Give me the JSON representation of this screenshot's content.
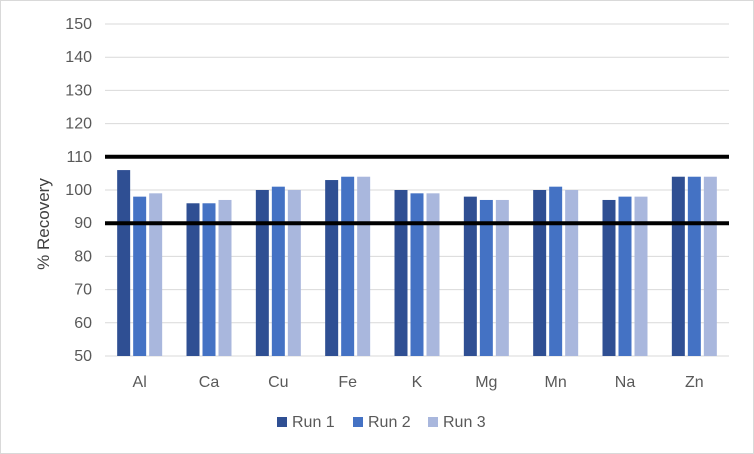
{
  "chart_data": {
    "type": "bar",
    "title": "",
    "xlabel": "",
    "ylabel": "% Recovery",
    "ylim": [
      50,
      150
    ],
    "y_ticks": [
      50,
      60,
      70,
      80,
      90,
      100,
      110,
      120,
      130,
      140,
      150
    ],
    "categories": [
      "Al",
      "Ca",
      "Cu",
      "Fe",
      "K",
      "Mg",
      "Mn",
      "Na",
      "Zn"
    ],
    "series": [
      {
        "name": "Run 1",
        "color": "#2f4f93",
        "values": [
          106,
          96,
          100,
          103,
          100,
          98,
          100,
          97,
          104
        ]
      },
      {
        "name": "Run 2",
        "color": "#4472c4",
        "values": [
          98,
          96,
          101,
          104,
          99,
          97,
          101,
          98,
          104
        ]
      },
      {
        "name": "Run 3",
        "color": "#a9b7dd",
        "values": [
          99,
          97,
          100,
          104,
          99,
          97,
          100,
          98,
          104
        ]
      }
    ],
    "reference_lines": [
      {
        "value": 110,
        "color": "#000000"
      },
      {
        "value": 90,
        "color": "#000000"
      }
    ],
    "grid": true,
    "legend_position": "bottom"
  }
}
